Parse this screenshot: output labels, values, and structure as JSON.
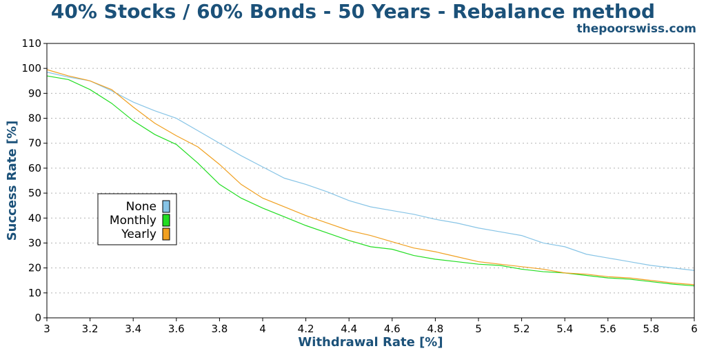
{
  "title": "40% Stocks / 60% Bonds - 50 Years - Rebalance method",
  "subtitle": "thepoorswiss.com",
  "colors": {
    "title": "#1b5179",
    "None": "#87c4e6",
    "Monthly": "#22dd22",
    "Yearly": "#f0a020",
    "grid": "#b0b0b0"
  },
  "chart_data": {
    "type": "line",
    "title": "40% Stocks / 60% Bonds - 50 Years - Rebalance method",
    "xlabel": "Withdrawal Rate [%]",
    "ylabel": "Success Rate [%]",
    "xlim": [
      3,
      6
    ],
    "ylim": [
      0,
      110
    ],
    "xticks": [
      3,
      3.2,
      3.4,
      3.6,
      3.8,
      4,
      4.2,
      4.4,
      4.6,
      4.8,
      5,
      5.2,
      5.4,
      5.6,
      5.8,
      6
    ],
    "xtick_labels": [
      "3",
      "3.2",
      "3.4",
      "3.6",
      "3.8",
      "4",
      "4.2",
      "4.4",
      "4.6",
      "4.8",
      "5",
      "5.2",
      "5.4",
      "5.6",
      "5.8",
      "6"
    ],
    "yticks": [
      0,
      10,
      20,
      30,
      40,
      50,
      60,
      70,
      80,
      90,
      100,
      110
    ],
    "ytick_labels": [
      "0",
      "10",
      "20",
      "30",
      "40",
      "50",
      "60",
      "70",
      "80",
      "90",
      "100",
      "110"
    ],
    "grid": "horizontal dotted",
    "legend": {
      "placement": "left",
      "entries": [
        "None",
        "Monthly",
        "Yearly"
      ]
    },
    "x": [
      3,
      3.1,
      3.2,
      3.3,
      3.4,
      3.5,
      3.6,
      3.7,
      3.8,
      3.9,
      4,
      4.1,
      4.2,
      4.3,
      4.4,
      4.5,
      4.6,
      4.7,
      4.8,
      4.9,
      5,
      5.1,
      5.2,
      5.3,
      5.4,
      5.5,
      5.6,
      5.7,
      5.8,
      5.9,
      6
    ],
    "series": [
      {
        "name": "None",
        "color": "#87c4e6",
        "values": [
          98.5,
          96.5,
          95,
          91,
          86.5,
          83,
          80,
          75,
          70,
          65,
          60.5,
          56,
          53.5,
          50.5,
          47,
          44.5,
          43,
          41.5,
          39.5,
          38,
          36,
          34.5,
          33,
          30,
          28.5,
          25.5,
          24,
          22.5,
          21,
          20,
          19
        ]
      },
      {
        "name": "Monthly",
        "color": "#22dd22",
        "values": [
          97,
          95.5,
          91.5,
          86,
          79,
          73.5,
          69.5,
          62,
          53.5,
          48,
          44,
          40.5,
          37,
          34,
          31,
          28.5,
          27.5,
          25,
          23.5,
          22.5,
          21.5,
          21,
          19.5,
          18.5,
          18,
          17,
          16,
          15.5,
          14.5,
          13.5,
          12.8
        ]
      },
      {
        "name": "Yearly",
        "color": "#f0a020",
        "values": [
          99.5,
          97,
          95,
          91.5,
          84.5,
          78,
          73,
          68.5,
          61.5,
          53.5,
          48,
          44.5,
          41,
          38,
          35,
          33,
          30.5,
          28,
          26.5,
          24.5,
          22.5,
          21.5,
          20.5,
          19.5,
          18,
          17.5,
          16.5,
          16,
          15,
          14,
          13.3
        ]
      }
    ]
  }
}
